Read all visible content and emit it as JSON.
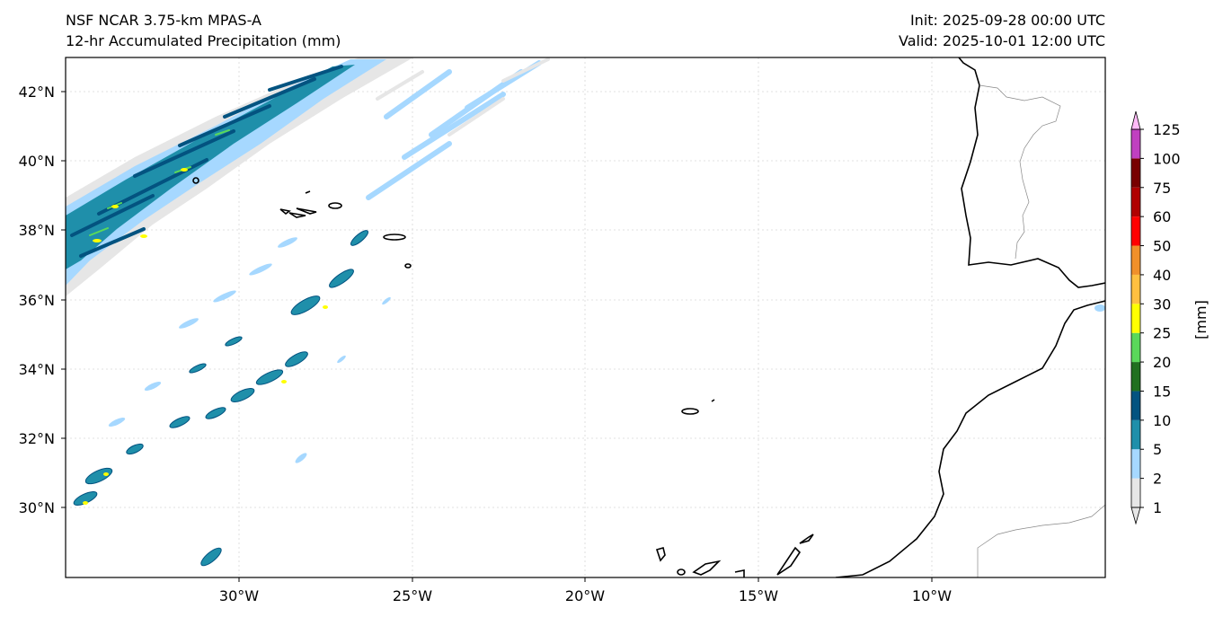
{
  "header": {
    "model": "NSF NCAR 3.75-km MPAS-A",
    "field": "12-hr Accumulated Precipitation (mm)",
    "init": "Init: 2025-09-28 00:00 UTC",
    "valid": "Valid: 2025-10-01 12:00 UTC"
  },
  "map": {
    "lon_ticks": [
      "30°W",
      "25°W",
      "20°W",
      "15°W",
      "10°W"
    ],
    "lat_ticks": [
      "42°N",
      "40°N",
      "38°N",
      "36°N",
      "34°N",
      "32°N",
      "30°N"
    ],
    "lon_range": [
      -35,
      -5
    ],
    "lat_range": [
      28,
      43
    ]
  },
  "colorbar": {
    "label": "[mm]",
    "levels": [
      "1",
      "2",
      "5",
      "10",
      "15",
      "20",
      "25",
      "30",
      "40",
      "50",
      "60",
      "75",
      "100",
      "125"
    ],
    "colors": [
      "#e6e6e6",
      "#a6d8ff",
      "#1f8faa",
      "#035380",
      "#217020",
      "#5ad85a",
      "#ffff00",
      "#ffc040",
      "#f0902a",
      "#ff0000",
      "#b00000",
      "#780000",
      "#c040c0",
      "#ffbaf7"
    ]
  }
}
